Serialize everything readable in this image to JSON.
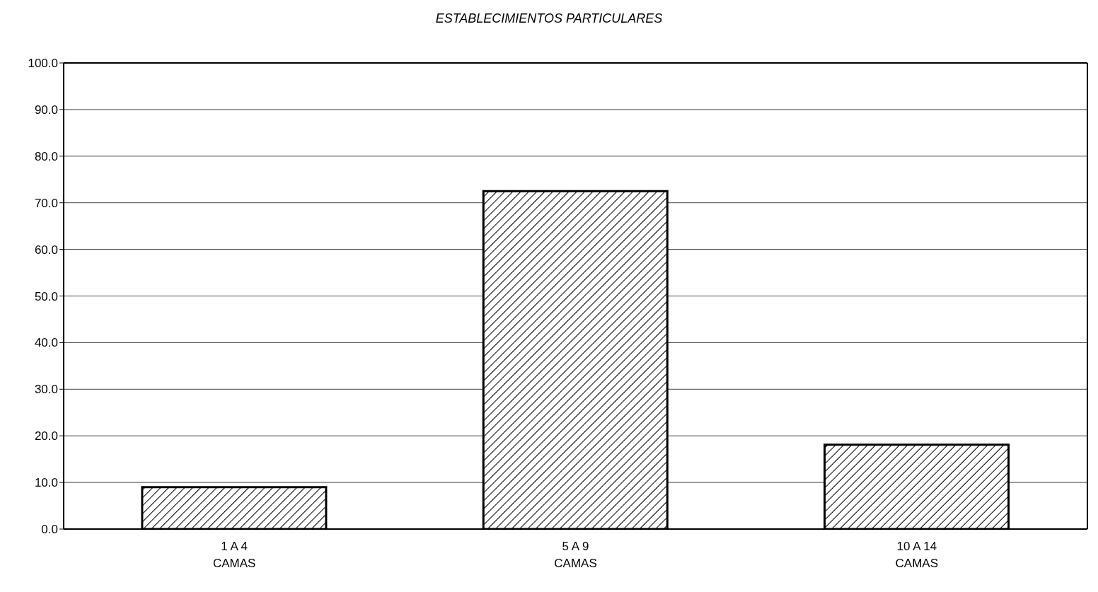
{
  "chart_data": {
    "type": "bar",
    "title": "ESTABLECIMIENTOS PARTICULARES",
    "categories": [
      "1 A 4 CAMAS",
      "5 A 9 CAMAS",
      "10 A 14 CAMAS"
    ],
    "values": [
      9.0,
      72.5,
      18.1
    ],
    "color": "#000000",
    "ylim": [
      0,
      100
    ],
    "yticks": [
      {
        "value": 0,
        "label": "0.0"
      },
      {
        "value": 10,
        "label": "10.0"
      },
      {
        "value": 20,
        "label": "20.0"
      },
      {
        "value": 30,
        "label": "30.0"
      },
      {
        "value": 40,
        "label": "40.0"
      },
      {
        "value": 50,
        "label": "50.0"
      },
      {
        "value": 60,
        "label": "60.0"
      },
      {
        "value": 70,
        "label": "70.0"
      },
      {
        "value": 80,
        "label": "80.0"
      },
      {
        "value": 90,
        "label": "90.0"
      },
      {
        "value": 100,
        "label": "100.0"
      }
    ],
    "grid": "y"
  }
}
